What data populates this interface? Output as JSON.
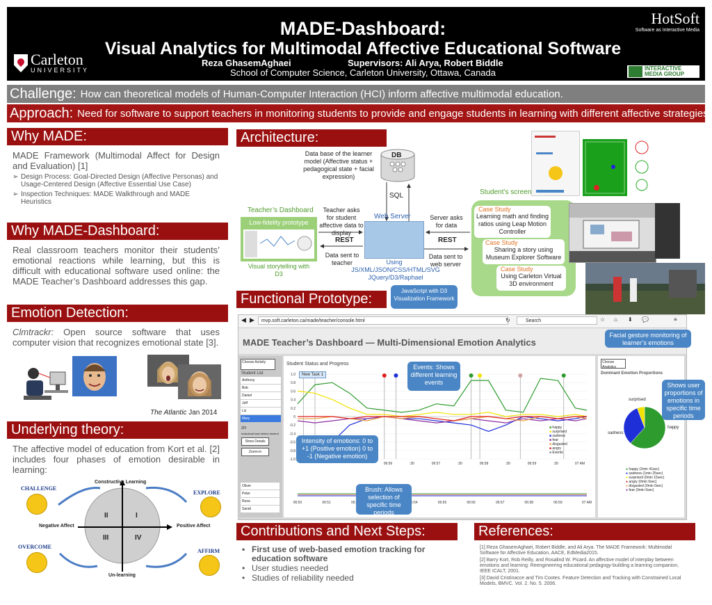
{
  "header": {
    "title_line1": "MADE-Dashboard:",
    "title_line2": "Visual Analytics for Multimodal Affective Educational Software",
    "authors": "Reza GhasemAghaei",
    "supervisors": "Supervisors: Ali Arya, Robert Biddle",
    "school": "School of Computer Science, Carleton University, Ottawa, Canada",
    "carleton_name": "Carleton",
    "carleton_university": "UNIVERSITY",
    "hotsoft": "HotSoft",
    "hotsoft_sub": "Software as Interactive Media",
    "img_logo_line1": "INTERACTIVE",
    "img_logo_line2": "MEDIA GROUP",
    "colors": {
      "header_bg": "#000000",
      "section_red": "#9a1010",
      "challenge_gray": "#7f7f7f",
      "approach_red": "#a31515"
    }
  },
  "challenge": {
    "label": "Challenge:",
    "text": "How can theoretical models of Human-Computer Interaction (HCI) inform affective multimodal education."
  },
  "approach": {
    "label": "Approach:",
    "text": "Need for software to support teachers in monitoring students to provide and engage students in learning with different affective strategies"
  },
  "why_made": {
    "title": "Why MADE:",
    "intro": "MADE Framework (Multimodal Affect for Design and Evaluation) [1]",
    "bullets": [
      "Design Process: Goal-Directed Design (Affective Personas) and Usage-Centered Design (Affective Essential Use Case)",
      "Inspection Techniques: MADE Walkthrough and MADE Heuristics"
    ]
  },
  "why_dashboard": {
    "title": "Why MADE-Dashboard:",
    "text": "Real classroom teachers monitor their students’ emotional reactions while learning, but this is difficult with educational software used online: the MADE Teacher’s Dashboard addresses this gap."
  },
  "emotion_detection": {
    "title": "Emotion Detection:",
    "tool": "Clmtrackr:",
    "text": "Open source software that uses computer vision that recognizes emotional state [3].",
    "credit_source": "The Atlantic",
    "credit_date": "Jan 2014"
  },
  "theory": {
    "title": "Underlying theory:",
    "text": "The affective model of education from Kort et al. [2] includes four phases of emotion desirable in learning:",
    "phases": {
      "challenge": "CHALLENGE",
      "explore": "EXPLORE",
      "overcome": "OVERCOME",
      "affirm": "AFFIRM"
    },
    "axes": {
      "top": "Constructive Learning",
      "bottom": "Un-learning",
      "left": "Negative Affect",
      "right": "Positive Affect"
    },
    "quadrants": {
      "q1": "I",
      "q2": "II",
      "q3": "III",
      "q4": "IV"
    }
  },
  "architecture": {
    "title": "Architecture:",
    "db_note": "Data base of the learner model (Affective status + pedagogical state + facial expression)",
    "db": "DB",
    "sql": "SQL",
    "web_server": "Web Server",
    "tech": "JS/XML/JSON/CSS/HTML/SVG JQuery/D3/Raphael",
    "using": "Using",
    "teacher_dashboard": "Teacher’s Dashboard",
    "lowfi": "Low-fidelity prototype",
    "storytelling": "Visual storytelling with D3",
    "teacher_asks": "Teacher asks for student affective data to display",
    "rest1": "REST",
    "data_sent_teacher": "Data sent to teacher",
    "server_asks": "Server asks for data",
    "rest2": "REST",
    "data_sent_server": "Data sent to web server",
    "students_screen": "Student’s screen",
    "case_label": "Case Study",
    "case1": "Learning math and finding ratios using Leap Motion Controller",
    "case2": "Sharing a story using Museum Explorer Software",
    "case3": "Using Carleton Virtual 3D environment"
  },
  "prototype": {
    "title": "Functional Prototype:",
    "callout_js": "JavaScript with D3 Visualization Framework",
    "url": "mvp.soft.carleton.ca/made/teacher/console.html",
    "search": "Search",
    "dashboard_title": "MADE Teacher’s Dashboard — Multi-Dimensional Emotion Analytics",
    "callout_face": "Facial gesture monitoring of learner’s emotions",
    "choose_activity": "Choose Activity",
    "student_list": "Student List",
    "students": [
      "Anthony",
      "Bob",
      "Daniel",
      "Jeff",
      "Liz",
      "Mary"
    ],
    "selected_student": "Mary",
    "students2": [
      "Oliver",
      "Peter",
      "Reza",
      "Sarah"
    ],
    "zif": "ZIF",
    "tooltip": "Indavisual task behind student",
    "show_details": "Show Details",
    "zoom_in": "Zoom-in",
    "status_title": "Student Status and Progress",
    "new_task": "New Task 1",
    "callout_events": "Events: Shows different learning events",
    "callout_intensity": "Intensity of emotions: 0 to +1 (Positive emotion) 0 to -1 (Negative emotion)",
    "callout_brush": "Brush: Allows selection of specific time periods",
    "choose_analytics": "Choose Analytics",
    "dominant": "Dominant Emotion Proportions",
    "callout_user": "Shows user proportions of emotions in specific time periods",
    "legend": [
      "happy",
      "surprised",
      "sadness",
      "fear",
      "disgusted",
      "angry",
      "Events"
    ],
    "pie_legend": [
      "happy (2min 41sec)",
      "sadness (1min 25sec)",
      "surprised (0min 15sec)",
      "angry (0min 0sec)",
      "disgusted (0min 0sec)",
      "fear (0min 0sec)"
    ],
    "pie_labels": {
      "surprised": "surprised",
      "sadness": "sadness",
      "happy": "happy"
    },
    "brush_ticks": [
      "06:50",
      "06:51",
      "06:52",
      "06:53",
      "06:54",
      "06:55",
      "06:56",
      "06:57",
      "06:58",
      "06:59",
      "07 AM"
    ],
    "colors": {
      "happy": "#2e9b2e",
      "surprised": "#f2e200",
      "sadness": "#1f2fd8",
      "fear": "#8a2ba0",
      "disgusted": "#e8a040",
      "angry": "#e02020"
    }
  },
  "chart_data": {
    "type": "line",
    "title": "",
    "ylim": [
      -1.0,
      1.0
    ],
    "y_ticks": [
      "1.0",
      "0.8",
      "0.6",
      "0.4",
      "0.2",
      "0",
      "-0.2",
      "-0.4",
      "-0.6",
      "-0.8",
      "-1.0"
    ],
    "x_ticks": [
      "06:56",
      ":30",
      "06:57",
      ":30",
      "06:58",
      ":30",
      "06:59",
      ":30",
      "07 AM"
    ],
    "x": [
      0,
      0.06,
      0.12,
      0.18,
      0.24,
      0.3,
      0.36,
      0.42,
      0.48,
      0.54,
      0.6,
      0.66,
      0.72,
      0.78,
      0.84,
      0.9,
      0.96,
      1.0
    ],
    "series": [
      {
        "name": "happy",
        "values": [
          0.3,
          0.75,
          0.8,
          0.55,
          0.2,
          0.15,
          0.1,
          0.15,
          0.3,
          0.25,
          0.85,
          0.85,
          0.15,
          0.1,
          0.9,
          0.85,
          0.2,
          0.15
        ]
      },
      {
        "name": "surprised",
        "values": [
          0.6,
          0.55,
          0.4,
          0.2,
          0.05,
          0.05,
          0.0,
          0.05,
          0.1,
          0.05,
          0.05,
          0.1,
          0.0,
          0.05,
          0.05,
          0.0,
          0.05,
          0.0
        ]
      },
      {
        "name": "sadness",
        "values": [
          -0.95,
          -0.9,
          -0.6,
          -0.2,
          -0.05,
          0.0,
          -0.05,
          -0.05,
          -0.1,
          -0.15,
          -0.2,
          -0.35,
          -0.2,
          0.0,
          -0.05,
          -0.1,
          -0.05,
          0.0
        ]
      },
      {
        "name": "fear",
        "values": [
          -0.1,
          -0.15,
          -0.1,
          -0.05,
          -0.05,
          0.0,
          -0.05,
          -0.1,
          -0.15,
          -0.1,
          -0.05,
          -0.1,
          -0.15,
          -0.05,
          -0.1,
          -0.05,
          -0.1,
          -0.05
        ]
      },
      {
        "name": "disgusted",
        "values": [
          -0.05,
          -0.05,
          0.0,
          -0.05,
          -0.1,
          0.0,
          -0.05,
          0.0,
          -0.05,
          -0.1,
          -0.05,
          0.0,
          -0.05,
          -0.1,
          0.0,
          -0.05,
          0.0,
          -0.05
        ]
      },
      {
        "name": "angry",
        "values": [
          0.0,
          0.0,
          0.0,
          -0.05,
          0.0,
          0.0,
          0.0,
          0.0,
          -0.05,
          -0.1,
          0.0,
          0.0,
          -0.05,
          0.0,
          0.0,
          -0.05,
          0.0,
          0.0
        ]
      }
    ],
    "events": [
      0.02,
      0.06,
      0.3,
      0.34,
      0.6,
      0.63,
      0.77,
      0.92
    ],
    "pie": [
      {
        "name": "happy",
        "value": 161
      },
      {
        "name": "sadness",
        "value": 85
      },
      {
        "name": "surprised",
        "value": 15
      }
    ]
  },
  "contributions": {
    "title": "Contributions and Next Steps:",
    "items": [
      "First use of web-based emotion tracking for education software",
      "User studies needed",
      "Studies of reliability needed"
    ]
  },
  "references": {
    "title": "References:",
    "items": [
      "[1] Reza GhasemAghaei, Robert Biddle, and Ali Arya. The MADE Framework: Multimodal Software for Affective Education, AACE, EdMedia2015.",
      "[2] Barry Kort, Rob Reilly, and Rosalind W. Picard. An affective model of interplay between emotions and learning: Reengineering educational pedagogy-building a learning companion, IEEE ICALT, 2001.",
      "[3] David Cristinacce and Tim Cootes. Feature Detection and Tracking with Constrained Local Models, BMVC. Vol. 2. No. 5. 2006."
    ]
  }
}
